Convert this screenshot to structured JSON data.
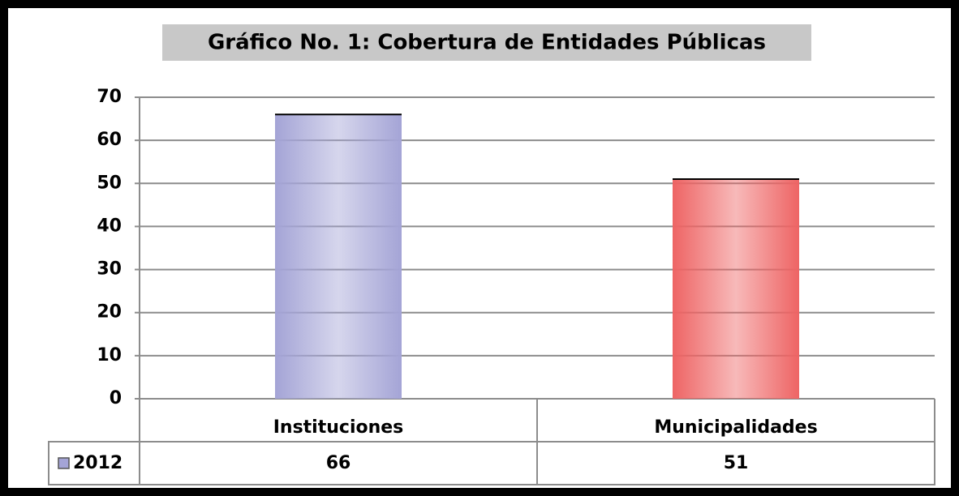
{
  "chart_data": {
    "type": "bar",
    "title": "Gráfico No. 1: Cobertura de Entidades Públicas",
    "categories": [
      "Instituciones",
      "Municipalidades"
    ],
    "series": [
      {
        "name": "2012",
        "colors": [
          "#a4a4d6",
          "#ee6464"
        ],
        "values": [
          66,
          51
        ]
      }
    ],
    "ylim": [
      0,
      70
    ],
    "yticks": [
      0,
      10,
      20,
      30,
      40,
      50,
      60,
      70
    ],
    "grid": true,
    "data_table": true
  }
}
